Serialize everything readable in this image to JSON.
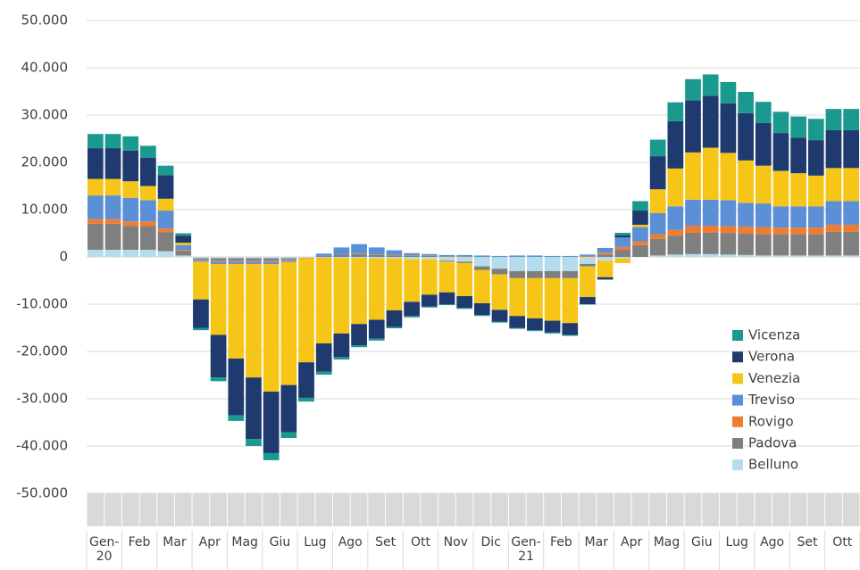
{
  "chart_data": {
    "type": "bar",
    "stacked": true,
    "grid": true,
    "legend": "right",
    "categories": [
      "Gen-20",
      null,
      "Feb",
      null,
      "Mar",
      null,
      "Apr",
      null,
      "Mag",
      null,
      "Giu",
      null,
      "Lug",
      null,
      "Ago",
      null,
      "Set",
      null,
      "Ott",
      null,
      "Nov",
      null,
      "Dic",
      null,
      "Gen-21",
      null,
      "Feb",
      null,
      "Mar",
      null,
      "Apr",
      null,
      "Mag",
      null,
      "Giu",
      null,
      "Lug",
      null,
      "Ago",
      null,
      "Set",
      null,
      "Ott",
      null
    ],
    "ylim": [
      -50000,
      50000
    ],
    "yticks": [
      {
        "value": -50000,
        "label": "-50.000"
      },
      {
        "value": -40000,
        "label": "-40.000"
      },
      {
        "value": -30000,
        "label": "-30.000"
      },
      {
        "value": -20000,
        "label": "-20.000"
      },
      {
        "value": -10000,
        "label": "-10.000"
      },
      0,
      {
        "value": 10000,
        "label": "10.000"
      },
      {
        "value": 20000,
        "label": "20.000"
      },
      {
        "value": 30000,
        "label": "30.000"
      },
      {
        "value": 40000,
        "label": "40.000"
      },
      {
        "value": 50000,
        "label": "50.000"
      }
    ],
    "series": [
      {
        "name": "Belluno",
        "color": "#b4dcea",
        "values": [
          1500,
          1500,
          1500,
          1500,
          1200,
          300,
          -300,
          -300,
          -300,
          -300,
          -300,
          -300,
          -200,
          -200,
          -200,
          -200,
          -300,
          -300,
          -500,
          -500,
          -800,
          -1000,
          -2000,
          -2500,
          -3000,
          -3000,
          -3000,
          -3000,
          -1500,
          -800,
          -300,
          0,
          300,
          500,
          600,
          600,
          500,
          400,
          300,
          300,
          300,
          300,
          300,
          300
        ]
      },
      {
        "name": "Padova",
        "color": "#7f7f7f",
        "values": [
          5500,
          5500,
          5000,
          5000,
          4000,
          1000,
          -300,
          -500,
          -500,
          -500,
          -500,
          -300,
          0,
          200,
          500,
          600,
          400,
          300,
          200,
          200,
          -200,
          -300,
          -800,
          -1200,
          -1500,
          -1500,
          -1500,
          -1500,
          -500,
          500,
          1500,
          2500,
          3500,
          4000,
          4500,
          4500,
          4500,
          4500,
          4500,
          4500,
          4500,
          4500,
          5000,
          5000
        ]
      },
      {
        "name": "Rovigo",
        "color": "#ed7d31",
        "values": [
          1000,
          1000,
          1000,
          1000,
          800,
          200,
          -100,
          -200,
          -200,
          -200,
          -200,
          -200,
          -100,
          -100,
          0,
          100,
          100,
          100,
          100,
          100,
          100,
          100,
          0,
          0,
          0,
          0,
          0,
          0,
          200,
          400,
          600,
          800,
          1000,
          1200,
          1500,
          1500,
          1500,
          1500,
          1500,
          1400,
          1400,
          1400,
          1500,
          1500
        ]
      },
      {
        "name": "Treviso",
        "color": "#5b8fd6",
        "values": [
          5000,
          5000,
          5000,
          4500,
          3800,
          1000,
          -300,
          -500,
          -500,
          -500,
          -500,
          -300,
          0,
          500,
          1500,
          2000,
          1500,
          1000,
          500,
          300,
          300,
          300,
          300,
          200,
          300,
          300,
          200,
          200,
          300,
          1000,
          2000,
          3000,
          4500,
          5000,
          5500,
          5500,
          5500,
          5000,
          5000,
          4500,
          4500,
          4500,
          5000,
          5000
        ]
      },
      {
        "name": "Venezia",
        "color": "#f5c518",
        "values": [
          3500,
          3500,
          3500,
          3000,
          2500,
          500,
          -8000,
          -15000,
          -20000,
          -24000,
          -27000,
          -26000,
          -22000,
          -18000,
          -16000,
          -14000,
          -13000,
          -11000,
          -9000,
          -7500,
          -6500,
          -7000,
          -7000,
          -7500,
          -8000,
          -8500,
          -9000,
          -9500,
          -6500,
          -3500,
          -1000,
          500,
          5000,
          8000,
          10000,
          11000,
          10000,
          9000,
          8000,
          7500,
          7000,
          6500,
          7000,
          7000
        ]
      },
      {
        "name": "Verona",
        "color": "#1f3a6e",
        "values": [
          6500,
          6500,
          6500,
          6000,
          5000,
          1500,
          -6000,
          -9000,
          -12000,
          -13000,
          -13000,
          -10000,
          -7500,
          -6000,
          -5000,
          -4500,
          -4000,
          -3500,
          -3000,
          -2500,
          -2500,
          -2500,
          -2500,
          -2500,
          -2500,
          -2500,
          -2500,
          -2500,
          -1500,
          -500,
          500,
          3000,
          7000,
          10000,
          11000,
          11000,
          10500,
          10000,
          9000,
          8000,
          7500,
          7500,
          8000,
          8000
        ]
      },
      {
        "name": "Vicenza",
        "color": "#1a9a8e",
        "values": [
          3000,
          3000,
          3000,
          2500,
          2000,
          500,
          -500,
          -800,
          -1200,
          -1500,
          -1500,
          -1200,
          -800,
          -600,
          -500,
          -400,
          -400,
          -300,
          -300,
          -200,
          -200,
          -200,
          -200,
          -200,
          -200,
          -200,
          -200,
          -200,
          -100,
          0,
          500,
          2000,
          3500,
          4000,
          4500,
          4500,
          4500,
          4500,
          4500,
          4500,
          4500,
          4500,
          4500,
          4500
        ]
      }
    ]
  }
}
